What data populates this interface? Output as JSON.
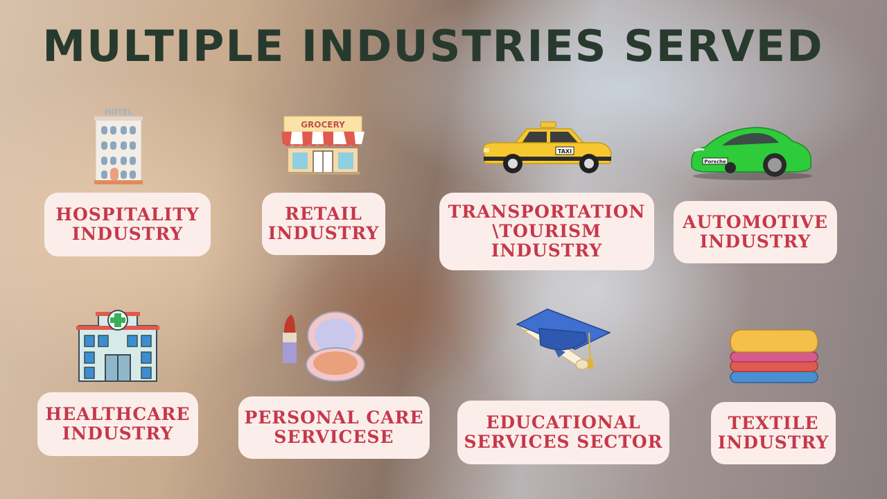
{
  "title": "MULTIPLE INDUSTRIES SERVED",
  "industries": [
    {
      "label": "HOSPITALITY\nINDUSTRY",
      "icon": "hotel-icon"
    },
    {
      "label": "RETAIL\nINDUSTRY",
      "icon": "grocery-store-icon"
    },
    {
      "label": "TRANSPORTATION\n\\TOURISM\nINDUSTRY",
      "icon": "taxi-icon"
    },
    {
      "label": "AUTOMOTIVE\nINDUSTRY",
      "icon": "sports-car-icon"
    },
    {
      "label": "HEALTHCARE\nINDUSTRY",
      "icon": "hospital-icon"
    },
    {
      "label": "PERSONAL CARE\nSERVICESE",
      "icon": "cosmetics-icon"
    },
    {
      "label": "EDUCATIONAL\nSERVICES SECTOR",
      "icon": "graduation-cap-icon"
    },
    {
      "label": "TEXTILE\nINDUSTRY",
      "icon": "folded-fabric-icon"
    }
  ],
  "icon_text": {
    "hotel_sign": "HOTEL",
    "grocery_sign": "GROCERY",
    "taxi_sign": "TAXI",
    "car_plate": "Porsche"
  },
  "colors": {
    "title": "#283a2e",
    "label_text": "#c6384a",
    "label_bg": "#fbeeea"
  }
}
